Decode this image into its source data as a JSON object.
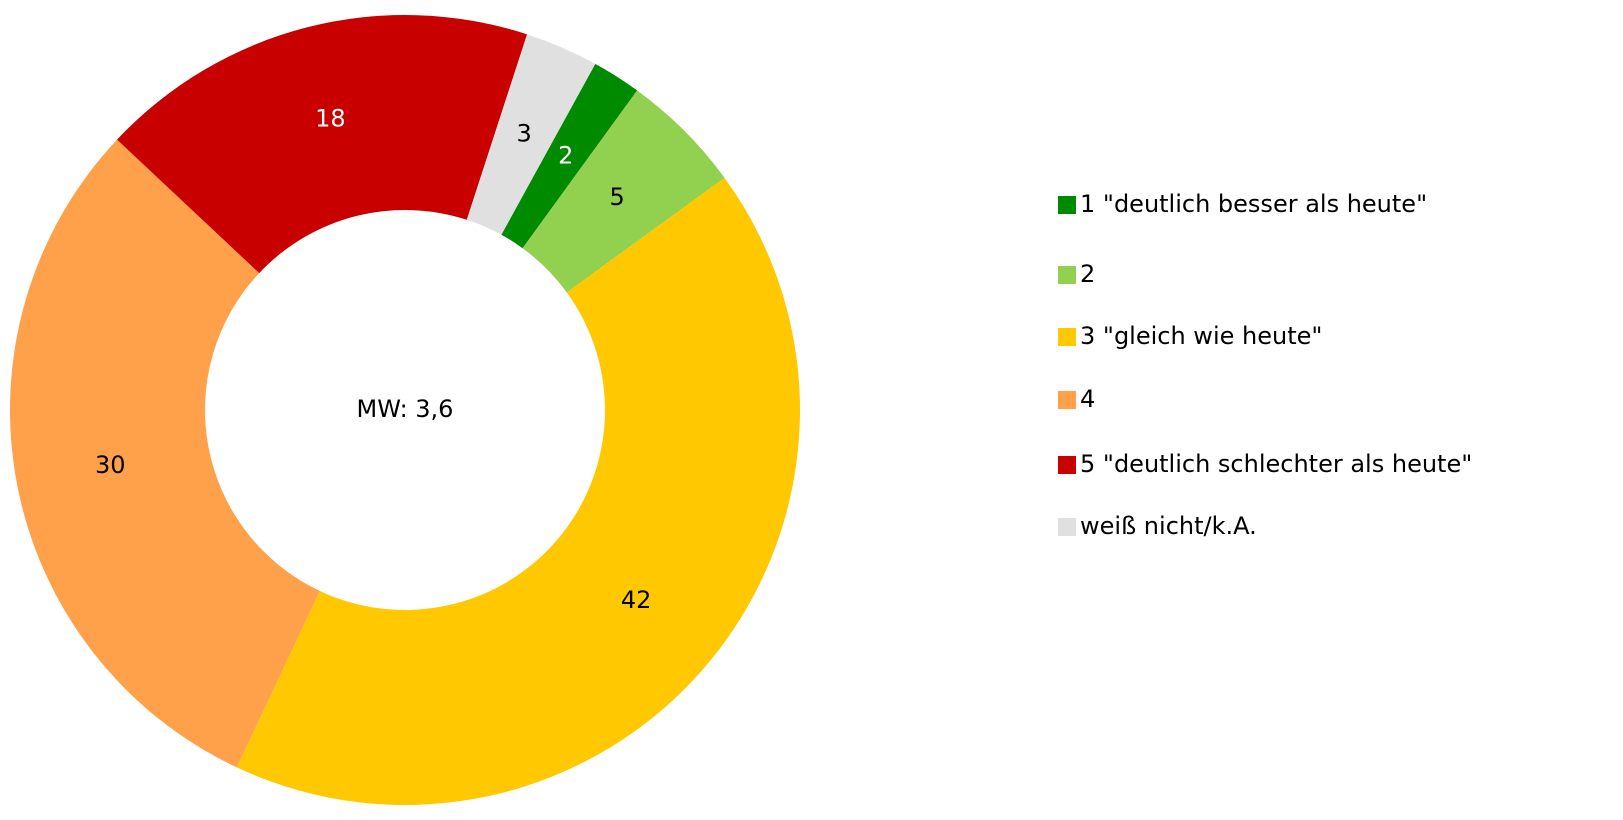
{
  "chart_data": {
    "type": "donut",
    "center_label": "MW: 3,6",
    "categories": [
      "1 \"deutlich besser als heute\"",
      "2",
      "3 \"gleich wie heute\"",
      "4",
      "5 \"deutlich schlechter als heute\"",
      "weiß nicht/k.A."
    ],
    "values": [
      2,
      5,
      42,
      30,
      18,
      3
    ],
    "colors": [
      "#008a00",
      "#92d050",
      "#ffc800",
      "#ffa04a",
      "#c80000",
      "#e0e0e0"
    ],
    "legend": "right"
  }
}
